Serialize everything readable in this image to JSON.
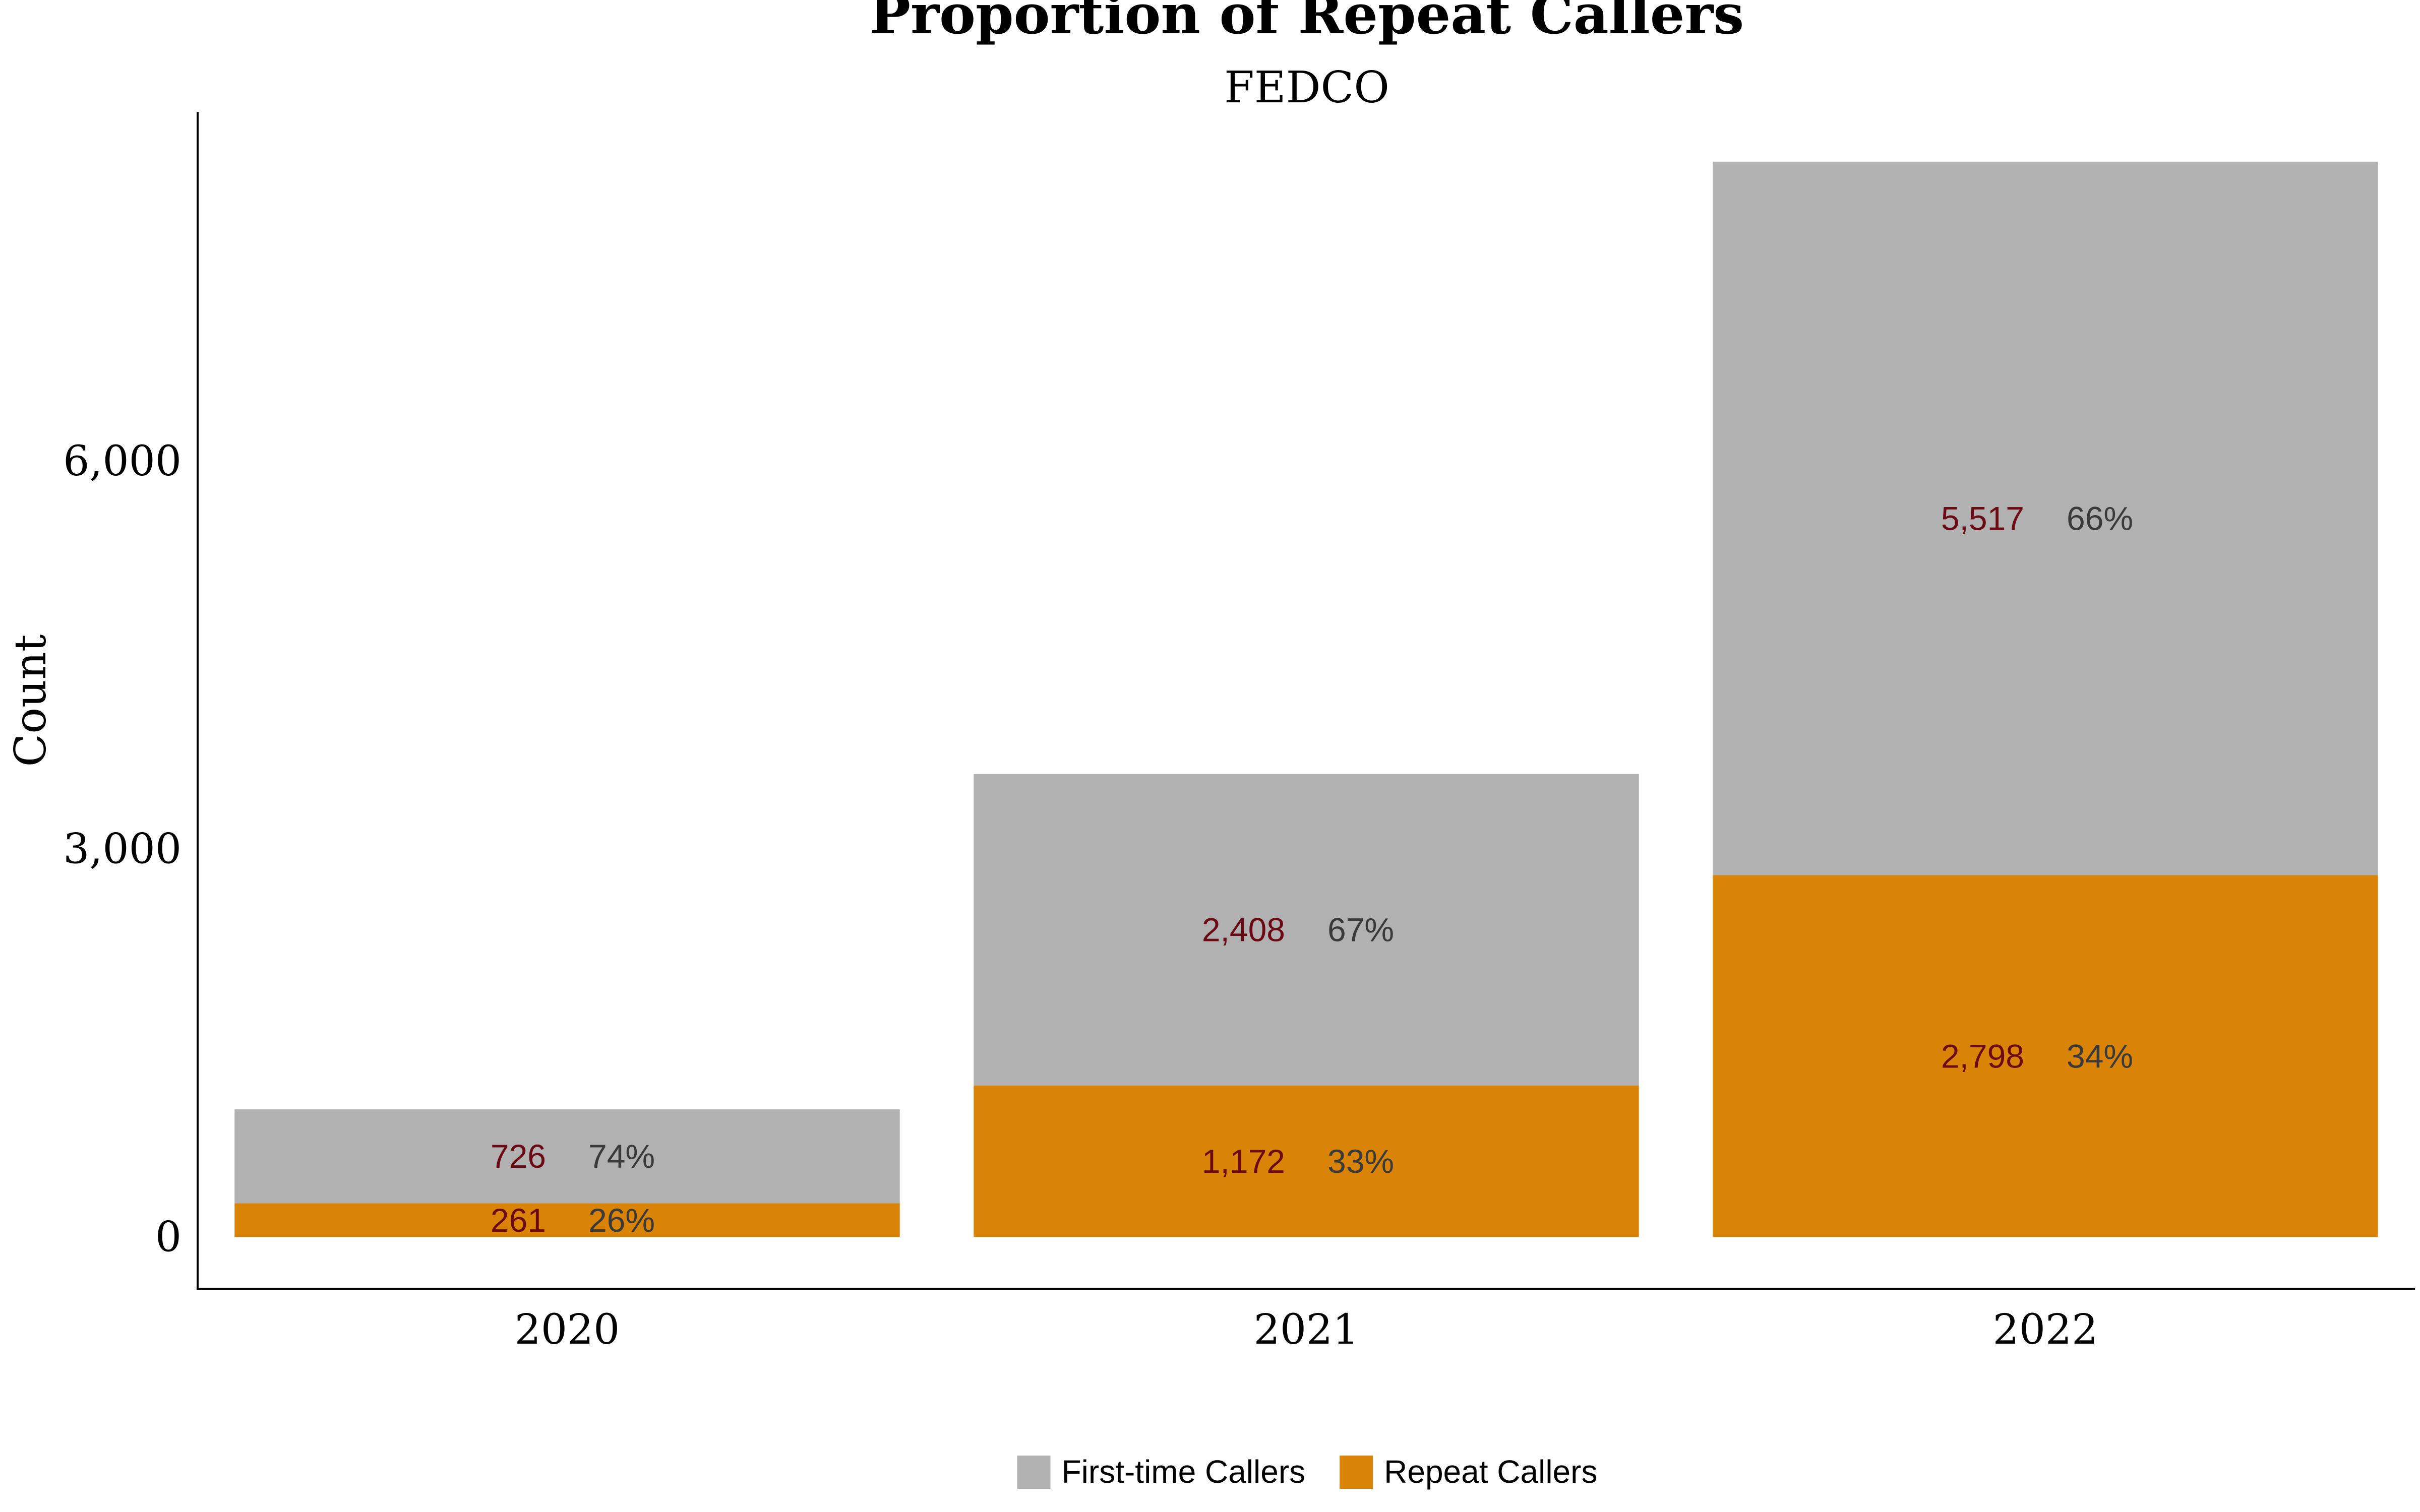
{
  "chart_data": {
    "type": "bar",
    "stacked": true,
    "title": "Proportion of Repeat Callers",
    "subtitle": "FEDCO",
    "ylabel": "Count",
    "xlabel": "",
    "categories": [
      "2020",
      "2021",
      "2022"
    ],
    "series": [
      {
        "name": "Repeat Callers",
        "color": "#d98407",
        "values": [
          261,
          1172,
          2798
        ],
        "value_labels": [
          "261",
          "1,172",
          "2,798"
        ],
        "pct_labels": [
          "26%",
          "33%",
          "34%"
        ]
      },
      {
        "name": "First-time Callers",
        "color": "#b1b1b1",
        "values": [
          726,
          2408,
          5517
        ],
        "value_labels": [
          "726",
          "2,408",
          "5,517"
        ],
        "pct_labels": [
          "74%",
          "67%",
          "66%"
        ]
      }
    ],
    "yticks": [
      0,
      3000,
      6000
    ],
    "ytick_labels": [
      "0",
      "3,000",
      "6,000"
    ],
    "ylim": [
      -400,
      8700
    ],
    "grid": false,
    "legend_position": "bottom",
    "value_label_color": "#6b0a14",
    "pct_label_color": "#3a3a3a"
  }
}
